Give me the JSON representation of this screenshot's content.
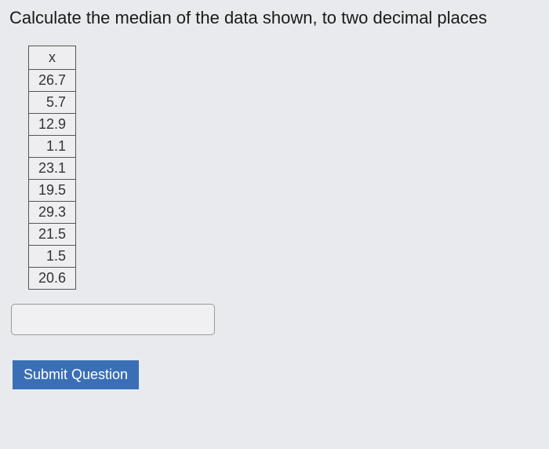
{
  "question": {
    "prompt": "Calculate the median of the data shown, to two decimal places"
  },
  "table": {
    "type": "table",
    "header": "x",
    "values": [
      "26.7",
      "5.7",
      "12.9",
      "1.1",
      "23.1",
      "19.5",
      "29.3",
      "21.5",
      "1.5",
      "20.6"
    ],
    "border_color": "#555555",
    "background_color": "#eeeef0",
    "text_color": "#333333",
    "fontsize": 18,
    "cell_align": "right"
  },
  "answer": {
    "value": "",
    "placeholder": ""
  },
  "submit": {
    "label": "Submit Question",
    "bg_color": "#3b6fb5",
    "text_color": "#ffffff"
  },
  "page": {
    "background_color": "#e8eaed",
    "prompt_fontsize": 22
  }
}
